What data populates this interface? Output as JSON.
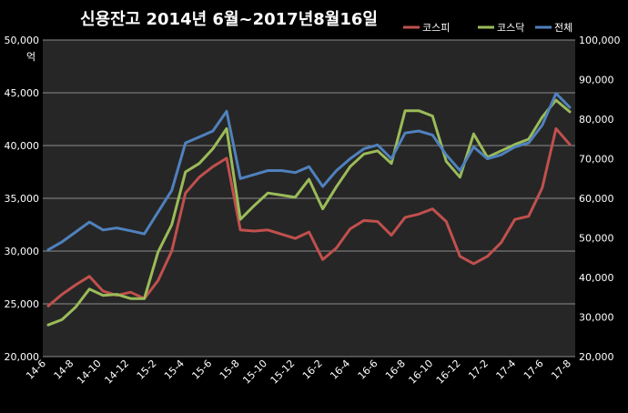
{
  "chart_data": {
    "type": "line",
    "title": "신용잔고  2014년 6월~2017년8월16일",
    "left_axis": {
      "unit_label": "억",
      "ylim": [
        20000,
        50000
      ],
      "ticks": [
        20000,
        25000,
        30000,
        35000,
        40000,
        45000,
        50000
      ],
      "tick_labels": [
        "20,000",
        "25,000",
        "30,000",
        "35,000",
        "40,000",
        "45,000",
        "50,000"
      ]
    },
    "right_axis": {
      "ylim": [
        20000,
        100000
      ],
      "ticks": [
        20000,
        30000,
        40000,
        50000,
        60000,
        70000,
        80000,
        90000,
        100000
      ],
      "tick_labels": [
        "20,000",
        "30,000",
        "40,000",
        "50,000",
        "60,000",
        "70,000",
        "80,000",
        "90,000",
        "100,000"
      ]
    },
    "x_tick_labels": [
      "14-6",
      "14-8",
      "14-10",
      "14-12",
      "15-2",
      "15-4",
      "15-6",
      "15-8",
      "15-10",
      "15-12",
      "16-2",
      "16-4",
      "16-6",
      "16-8",
      "16-10",
      "16-12",
      "17-2",
      "17-4",
      "17-6",
      "17-8"
    ],
    "grid": true,
    "legend_placement": "top-right",
    "colors": {
      "background": "#262626",
      "grid": "#8c8c8c",
      "text": "#ffffff"
    },
    "x": [
      "2014-06",
      "2014-07",
      "2014-08",
      "2014-09",
      "2014-10",
      "2014-11",
      "2014-12",
      "2015-01",
      "2015-02",
      "2015-03",
      "2015-04",
      "2015-05",
      "2015-06",
      "2015-07",
      "2015-08",
      "2015-09",
      "2015-10",
      "2015-11",
      "2015-12",
      "2016-01",
      "2016-02",
      "2016-03",
      "2016-04",
      "2016-05",
      "2016-06",
      "2016-07",
      "2016-08",
      "2016-09",
      "2016-10",
      "2016-11",
      "2016-12",
      "2017-01",
      "2017-02",
      "2017-03",
      "2017-04",
      "2017-05",
      "2017-06",
      "2017-07",
      "2017-08"
    ],
    "series": [
      {
        "name": "코스피",
        "axis": "left",
        "color": "#c0504d",
        "values": [
          24800,
          25900,
          26800,
          27600,
          26200,
          25800,
          26100,
          25500,
          27200,
          30000,
          35500,
          37000,
          38000,
          38800,
          32000,
          31900,
          32000,
          31600,
          31200,
          31800,
          29200,
          30300,
          32100,
          32900,
          32800,
          31500,
          33200,
          33500,
          34000,
          32800,
          29500,
          28800,
          29500,
          30800,
          33000,
          33300,
          36000,
          41600,
          40100
        ]
      },
      {
        "name": "코스닥",
        "axis": "left",
        "color": "#9bbb59",
        "values": [
          23000,
          23500,
          24700,
          26400,
          25800,
          25900,
          25500,
          25500,
          29900,
          32500,
          37500,
          38300,
          39700,
          41600,
          33000,
          34300,
          35500,
          35300,
          35100,
          36800,
          34000,
          36100,
          38000,
          39200,
          39500,
          38300,
          43300,
          43300,
          42800,
          38500,
          37000,
          41100,
          38900,
          39500,
          40100,
          40600,
          42700,
          44300,
          43200
        ]
      },
      {
        "name": "전체",
        "axis": "right",
        "color": "#4f81bd",
        "values": [
          47000,
          49000,
          51500,
          54000,
          52000,
          52500,
          51800,
          51000,
          56500,
          62000,
          74000,
          75500,
          77000,
          82000,
          65000,
          66000,
          67000,
          67000,
          66500,
          68000,
          63000,
          67000,
          70000,
          72500,
          73500,
          70000,
          76500,
          77000,
          76000,
          71000,
          67000,
          73000,
          70000,
          71000,
          73000,
          74000,
          78500,
          86500,
          83000
        ]
      }
    ]
  }
}
